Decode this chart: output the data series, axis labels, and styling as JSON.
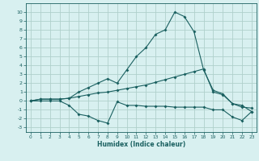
{
  "xlabel": "Humidex (Indice chaleur)",
  "ylabel": "",
  "bg_color": "#d8f0f0",
  "grid_color": "#b0d0cc",
  "line_color": "#1a6060",
  "xlim": [
    -0.5,
    23.5
  ],
  "ylim": [
    -3.5,
    11
  ],
  "xticks": [
    0,
    1,
    2,
    3,
    4,
    5,
    6,
    7,
    8,
    9,
    10,
    11,
    12,
    13,
    14,
    15,
    16,
    17,
    18,
    19,
    20,
    21,
    22,
    23
  ],
  "yticks": [
    -3,
    -2,
    -1,
    0,
    1,
    2,
    3,
    4,
    5,
    6,
    7,
    8,
    9,
    10
  ],
  "line1_x": [
    0,
    1,
    2,
    3,
    4,
    5,
    6,
    7,
    8,
    9,
    10,
    11,
    12,
    13,
    14,
    15,
    16,
    17,
    18,
    19,
    20,
    21,
    22,
    23
  ],
  "line1_y": [
    0,
    0,
    0,
    0,
    -0.5,
    -1.5,
    -1.7,
    -2.2,
    -2.5,
    -0.1,
    -0.5,
    -0.5,
    -0.6,
    -0.6,
    -0.6,
    -0.7,
    -0.7,
    -0.7,
    -0.7,
    -1.0,
    -1.0,
    -1.8,
    -2.2,
    -1.2
  ],
  "line2_x": [
    0,
    1,
    2,
    3,
    4,
    5,
    6,
    7,
    8,
    9,
    10,
    11,
    12,
    13,
    14,
    15,
    16,
    17,
    18,
    19,
    20,
    21,
    22,
    23
  ],
  "line2_y": [
    0,
    0.2,
    0.2,
    0.2,
    0.3,
    0.5,
    0.7,
    0.9,
    1.0,
    1.2,
    1.4,
    1.6,
    1.8,
    2.1,
    2.4,
    2.7,
    3.0,
    3.3,
    3.6,
    1.0,
    0.7,
    -0.3,
    -0.7,
    -0.8
  ],
  "line3_x": [
    0,
    1,
    2,
    3,
    4,
    5,
    6,
    7,
    8,
    9,
    10,
    11,
    12,
    13,
    14,
    15,
    16,
    17,
    18,
    19,
    20,
    21,
    22,
    23
  ],
  "line3_y": [
    0,
    0.2,
    0.2,
    0.2,
    0.3,
    1.0,
    1.5,
    2.0,
    2.5,
    2.0,
    3.5,
    5.0,
    6.0,
    7.5,
    8.0,
    10.0,
    9.5,
    7.8,
    3.5,
    1.2,
    0.8,
    -0.3,
    -0.5,
    -1.2
  ]
}
